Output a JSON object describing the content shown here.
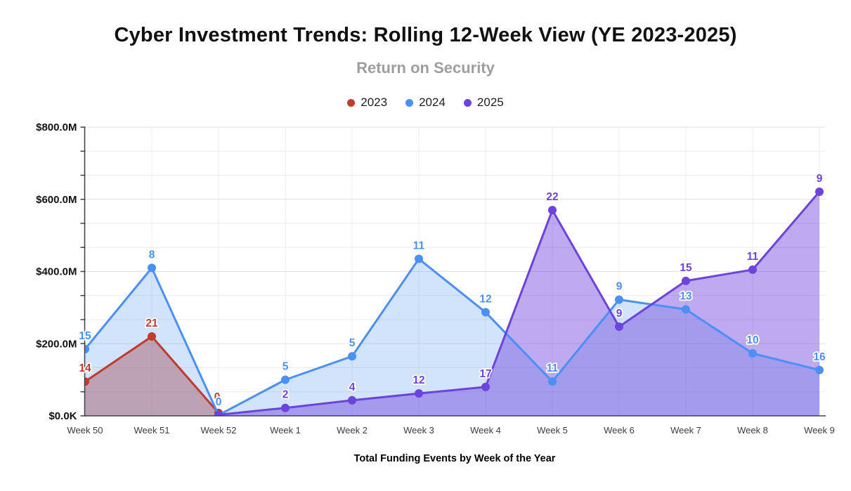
{
  "header": {
    "title": "Cyber Investment Trends: Rolling 12-Week View (YE 2023-2025)",
    "subtitle": "Return on Security"
  },
  "chart_data": {
    "type": "area",
    "title": "Cyber Investment Trends: Rolling 12-Week View (YE 2023-2025)",
    "subtitle": "Return on Security",
    "xlabel": "Total Funding Events by Week of the Year",
    "ylabel": "",
    "legend_position": "top",
    "grid": true,
    "ylim_musd": [
      0,
      800
    ],
    "y_ticks": [
      "$0.0K",
      "$200.0M",
      "$400.0M",
      "$600.0M",
      "$800.0M"
    ],
    "categories": [
      "Week 50",
      "Week 51",
      "Week 52",
      "Week 1",
      "Week 2",
      "Week 3",
      "Week 4",
      "Week 5",
      "Week 6",
      "Week 7",
      "Week 8",
      "Week 9"
    ],
    "series": [
      {
        "name": "2023",
        "color": "#c23b2c",
        "fill_opacity": 0.45,
        "funding_musd": [
          95,
          220,
          8,
          null,
          null,
          null,
          null,
          null,
          null,
          null,
          null,
          null
        ],
        "event_count_labels": [
          14,
          21,
          0,
          null,
          null,
          null,
          null,
          null,
          null,
          null,
          null,
          null
        ]
      },
      {
        "name": "2024",
        "color": "#4a90f5",
        "fill_opacity": 0.25,
        "funding_musd": [
          185,
          410,
          2,
          100,
          165,
          435,
          287,
          95,
          322,
          295,
          173,
          127
        ],
        "event_count_labels": [
          15,
          8,
          0,
          5,
          5,
          11,
          12,
          11,
          9,
          13,
          10,
          16
        ]
      },
      {
        "name": "2025",
        "color": "#6c43dc",
        "fill_opacity": 0.45,
        "funding_musd": [
          null,
          null,
          3,
          22,
          43,
          62,
          80,
          570,
          247,
          374,
          405,
          621
        ],
        "event_count_labels": [
          null,
          null,
          null,
          2,
          4,
          12,
          17,
          22,
          9,
          15,
          11,
          9
        ]
      }
    ]
  }
}
